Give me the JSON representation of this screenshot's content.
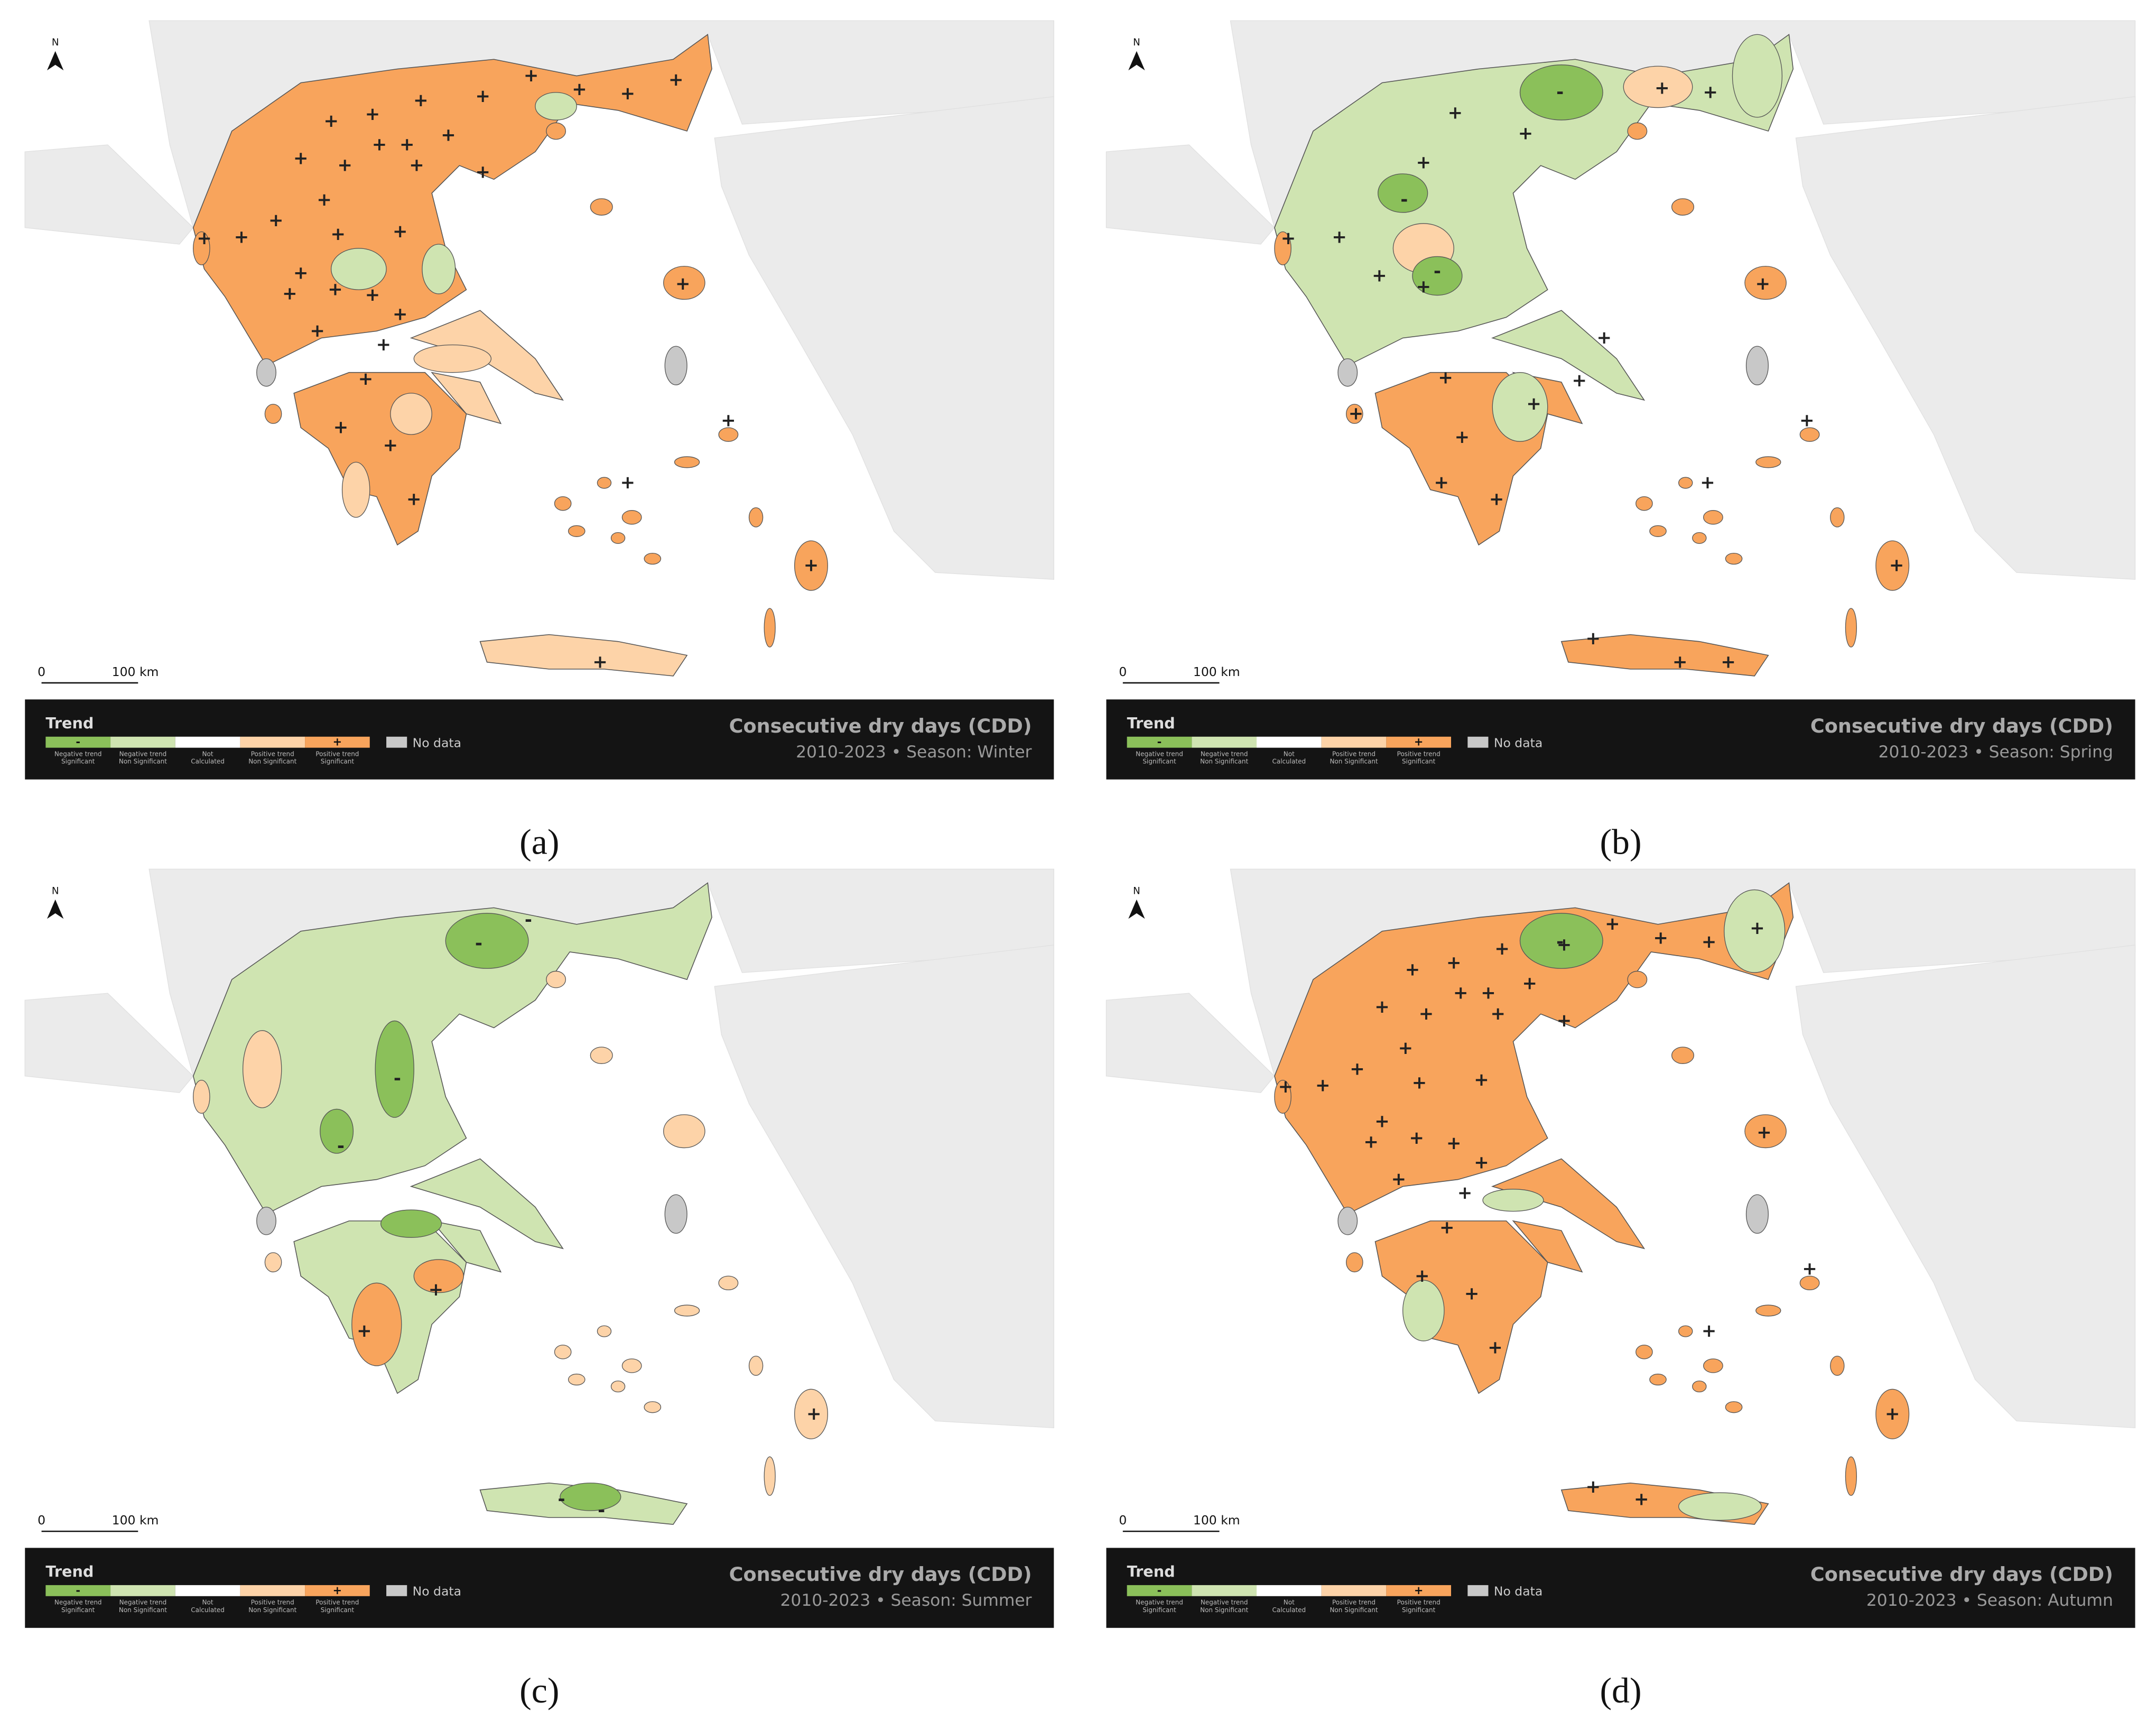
{
  "title": "Consecutive dry days (CDD)",
  "north": "N",
  "scale": [
    "0",
    "100 km"
  ],
  "legend": {
    "title": "Trend",
    "items": [
      {
        "symbol": "-",
        "lines": [
          "Negative trend",
          "Significant"
        ],
        "color": "#8bc05a"
      },
      {
        "lines": [
          "Negative trend",
          "Non Significant"
        ],
        "color": "#cfe4b1"
      },
      {
        "lines": [
          "Not",
          "Calculated"
        ],
        "color": "#ffffff"
      },
      {
        "lines": [
          "Positive trend",
          "Non Significant"
        ],
        "color": "#fdd3a8"
      },
      {
        "symbol": "+",
        "lines": [
          "Positive trend",
          "Significant"
        ],
        "color": "#f8a45c"
      }
    ],
    "no_data": {
      "label": "No data",
      "color": "#c8c8c8"
    }
  },
  "panels": [
    {
      "label": "(a)",
      "subtitle": "2010-2023 • Season: Winter",
      "signs": [
        "+",
        "+",
        "+",
        "+",
        "+",
        "+",
        "+",
        "+",
        "+",
        "+",
        "+",
        "+",
        "+",
        "+",
        "+",
        "+",
        "+",
        "+",
        "+",
        "+",
        "+",
        "+",
        "+",
        "+",
        "+",
        "+",
        "+",
        "+",
        "+",
        "+",
        "+",
        "+",
        "+",
        "+",
        "+",
        "+",
        "+"
      ]
    },
    {
      "label": "(b)",
      "subtitle": "2010-2023 • Season: Spring",
      "signs": [
        "-",
        "-",
        "-",
        "+",
        "+",
        "+",
        "+",
        "+",
        "+",
        "+",
        "+",
        "+",
        "+",
        "+",
        "+",
        "+",
        "+",
        "+",
        "+",
        "+",
        "+",
        "+",
        "+",
        "+",
        "+",
        "+",
        "+"
      ]
    },
    {
      "label": "(c)",
      "subtitle": "2010-2023 • Season: Summer",
      "signs": [
        "-",
        "-",
        "-",
        "-",
        "-",
        "-",
        "+",
        "+",
        "+"
      ]
    },
    {
      "label": "(d)",
      "subtitle": "2010-2023 • Season: Autumn",
      "signs": [
        "-",
        "+",
        "+",
        "+",
        "+",
        "+",
        "+",
        "+",
        "+",
        "+",
        "+",
        "+",
        "+",
        "+",
        "+",
        "+",
        "+",
        "+",
        "+",
        "+",
        "+",
        "+",
        "+",
        "+",
        "+",
        "+",
        "+",
        "+",
        "+",
        "+",
        "+",
        "+",
        "+",
        "+",
        "+",
        "+",
        "+",
        "+",
        "+"
      ]
    }
  ]
}
